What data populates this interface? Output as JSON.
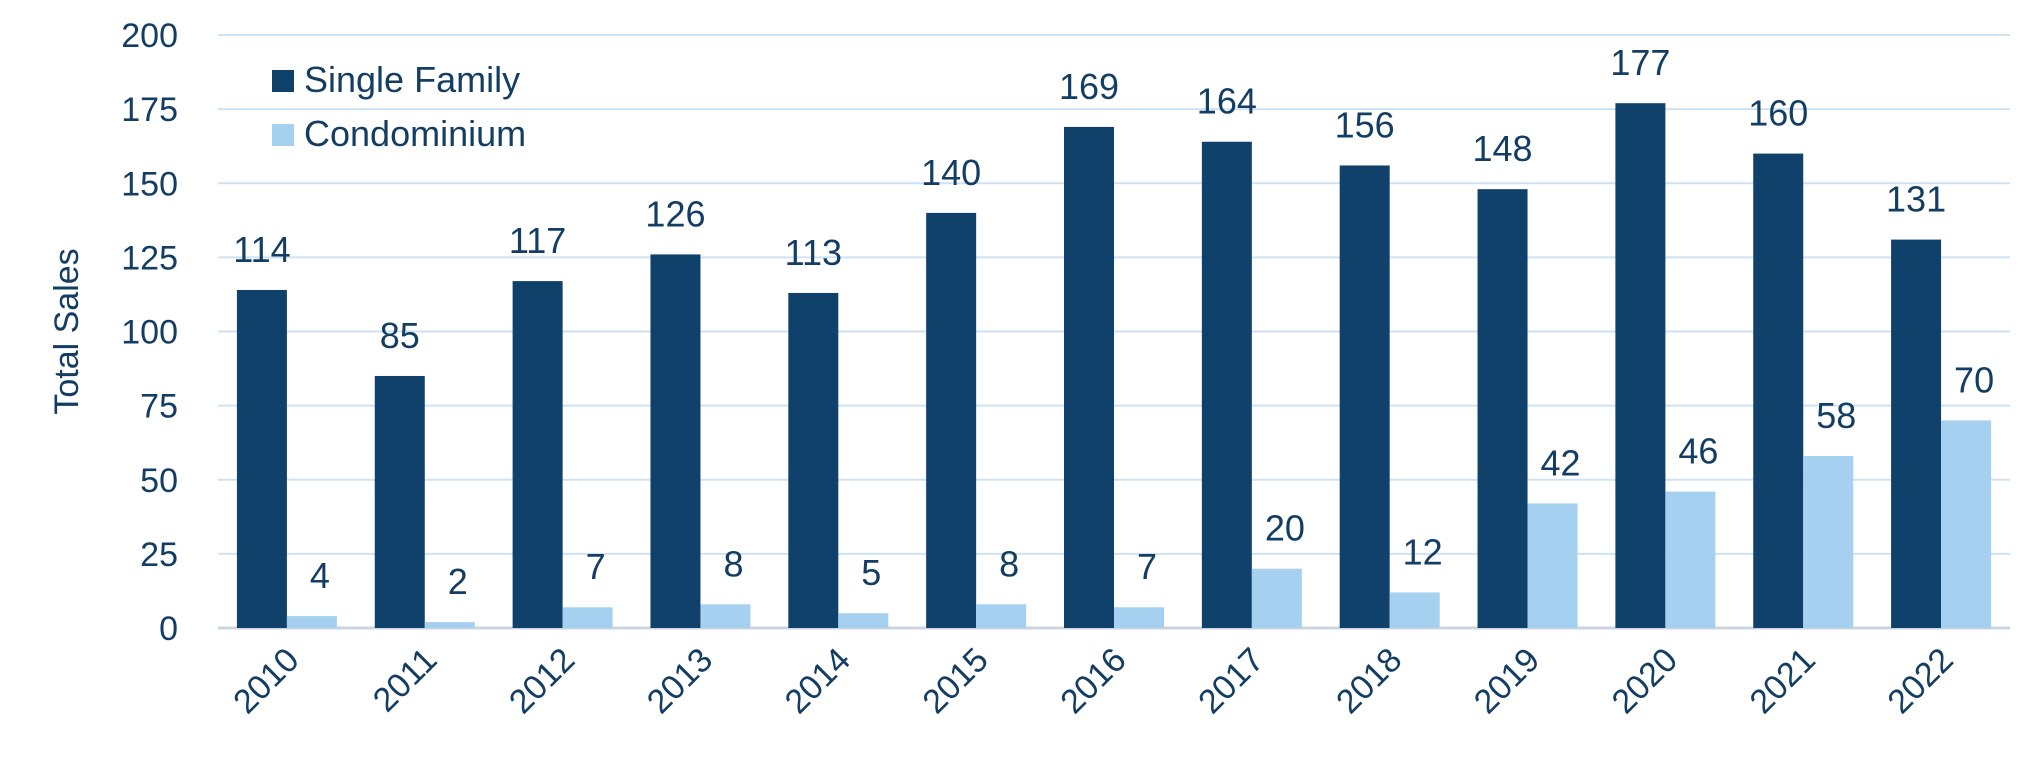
{
  "chart_data": {
    "type": "bar",
    "categories": [
      "2010",
      "2011",
      "2012",
      "2013",
      "2014",
      "2015",
      "2016",
      "2017",
      "2018",
      "2019",
      "2020",
      "2021",
      "2022"
    ],
    "series": [
      {
        "name": "Single Family",
        "values": [
          114,
          85,
          117,
          126,
          113,
          140,
          169,
          164,
          156,
          148,
          177,
          160,
          131
        ],
        "color": "#10416a"
      },
      {
        "name": "Condominium",
        "values": [
          4,
          2,
          7,
          8,
          5,
          8,
          7,
          20,
          12,
          42,
          46,
          58,
          70
        ],
        "color": "#a6d0f0"
      }
    ],
    "ylabel": "Total Sales",
    "ylim": [
      0,
      200
    ],
    "yticks": [
      0,
      25,
      50,
      75,
      100,
      125,
      150,
      175,
      200
    ],
    "grid": true,
    "legend": "top-left",
    "colors": {
      "text": "#143d64",
      "grid": "#cfe2f3"
    }
  }
}
